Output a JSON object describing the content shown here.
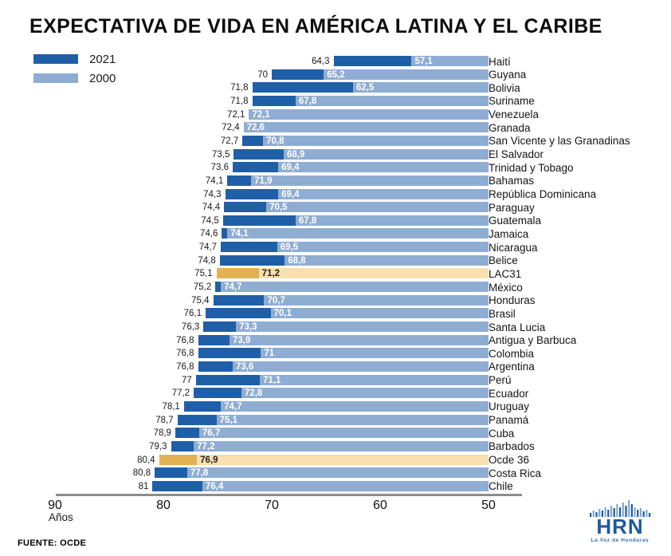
{
  "title": "EXPECTATIVA DE VIDA EN AMÉRICA LATINA Y EL CARIBE",
  "legend": {
    "items": [
      {
        "label": "2021"
      },
      {
        "label": "2000"
      }
    ]
  },
  "axis": {
    "ticks": [
      "90",
      "80",
      "70",
      "60",
      "50"
    ],
    "unit": "Años",
    "min": 50,
    "max": 90
  },
  "source": "FUENTE: OCDE",
  "logo": {
    "text": "HRN",
    "tagline": "La Voz de Honduras"
  },
  "colors": {
    "bar_2021": "#1e5fa8",
    "bar_2000": "#8fadd3",
    "highlight_2021": "#e0b254",
    "highlight_2000": "#f8dfb0",
    "axis_line": "#8c8c8c",
    "logo_blue": "#1d5a9b",
    "logo_blue_light": "#7ea8d6"
  },
  "chart_data": {
    "type": "bar",
    "orientation": "horizontal",
    "value_axis_reversed": true,
    "title": "EXPECTATIVA DE VIDA EN AMÉRICA LATINA Y EL CARIBE",
    "xlabel": "Años",
    "xlim": [
      90,
      50
    ],
    "grid": false,
    "legend_position": "top-left",
    "categories": [
      "Haití",
      "Guyana",
      "Bolivia",
      "Suriname",
      "Venezuela",
      "Granada",
      "San Vicente y las Granadinas",
      "El Salvador",
      "Trinidad y Tobago",
      "Bahamas",
      "República Dominicana",
      "Paraguay",
      "Guatemala",
      "Jamaica",
      "Nicaragua",
      "Belice",
      "LAC31",
      "México",
      "Honduras",
      "Brasil",
      "Santa Lucia",
      "Antigua y Barbuca",
      "Colombia",
      "Argentina",
      "Perú",
      "Ecuador",
      "Uruguay",
      "Panamá",
      "Cuba",
      "Barbados",
      "Ocde 36",
      "Costa Rica",
      "Chile"
    ],
    "series": [
      {
        "name": "2021",
        "color": "#1e5fa8",
        "values": [
          64.3,
          70,
          71.8,
          71.8,
          72.1,
          72.4,
          72.7,
          73.5,
          73.6,
          74.1,
          74.3,
          74.4,
          74.5,
          74.6,
          74.7,
          74.8,
          75.1,
          75.2,
          75.4,
          76.1,
          76.3,
          76.8,
          76.8,
          76.8,
          77,
          77.2,
          78.1,
          78.7,
          78.9,
          79.3,
          80.4,
          80.8,
          81
        ]
      },
      {
        "name": "2000",
        "color": "#8fadd3",
        "values": [
          57.1,
          65.2,
          62.5,
          67.8,
          72.1,
          72.6,
          70.8,
          68.9,
          69.4,
          71.9,
          69.4,
          70.5,
          67.8,
          74.1,
          69.5,
          68.8,
          71.2,
          74.7,
          70.7,
          70.1,
          73.3,
          73.9,
          71,
          73.6,
          71.1,
          72.8,
          74.7,
          75.1,
          76.7,
          77.2,
          76.9,
          77.8,
          76.4
        ]
      }
    ],
    "highlighted_categories": [
      "LAC31",
      "Ocde 36"
    ]
  }
}
